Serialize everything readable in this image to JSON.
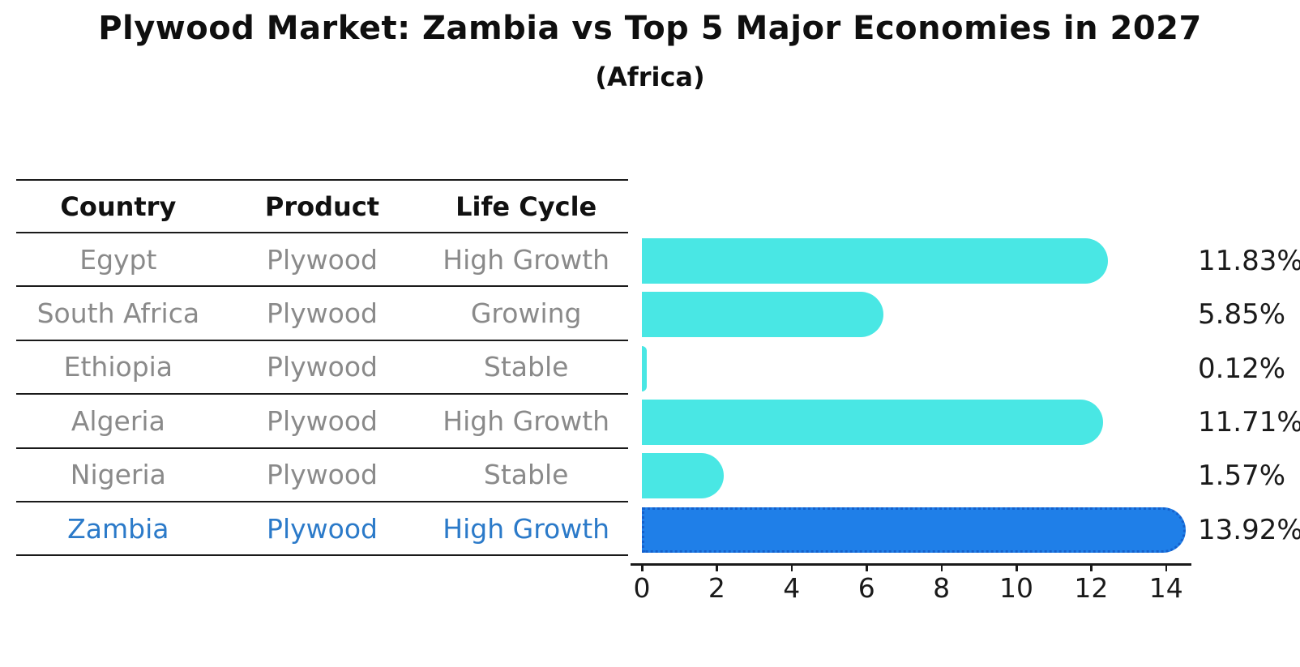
{
  "title": "Plywood Market: Zambia vs Top 5 Major Economies in 2027",
  "subtitle": "(Africa)",
  "table": {
    "headers": [
      "Country",
      "Product",
      "Life Cycle"
    ],
    "rows": [
      {
        "country": "Egypt",
        "product": "Plywood",
        "life_cycle": "High Growth"
      },
      {
        "country": "South Africa",
        "product": "Plywood",
        "life_cycle": "Growing"
      },
      {
        "country": "Ethiopia",
        "product": "Plywood",
        "life_cycle": "Stable"
      },
      {
        "country": "Algeria",
        "product": "Plywood",
        "life_cycle": "High Growth"
      },
      {
        "country": "Nigeria",
        "product": "Plywood",
        "life_cycle": "Stable"
      },
      {
        "country": "Zambia",
        "product": "Plywood",
        "life_cycle": "High Growth"
      }
    ],
    "highlight_row": "Zambia"
  },
  "chart_data": {
    "type": "bar",
    "orientation": "horizontal",
    "title": "Plywood Market: Zambia vs Top 5 Major Economies in 2027",
    "subtitle": "(Africa)",
    "categories": [
      "Egypt",
      "South Africa",
      "Ethiopia",
      "Algeria",
      "Nigeria",
      "Zambia"
    ],
    "values": [
      11.83,
      5.85,
      0.12,
      11.71,
      1.57,
      13.92
    ],
    "value_labels": [
      "11.83%",
      "5.85%",
      "0.12%",
      "11.71%",
      "1.57%",
      "13.92%"
    ],
    "x_ticks": [
      0,
      2,
      4,
      6,
      8,
      10,
      12,
      14
    ],
    "xlim": [
      0,
      14.65
    ],
    "xlabel": "",
    "ylabel": "",
    "grid": false,
    "legend": false,
    "bar_color": "#49e7e4",
    "highlight_color": "#1f7fe8",
    "highlight_edge_color": "#1560cc",
    "highlight_index": 5,
    "highlight_text_color": "#2b7ac9"
  },
  "colors": {
    "background": "#ffffff",
    "text_primary": "#111111",
    "text_muted": "#8a8a8a",
    "line": "#1a1a1a"
  }
}
